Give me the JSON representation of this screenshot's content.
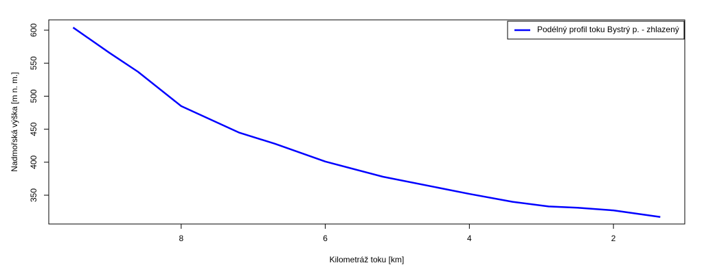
{
  "chart_data": {
    "type": "line",
    "x_label": "Kilometráž toku [km]",
    "y_label": "Nadmořská výška [m n. m.]",
    "x": [
      9.5,
      9.0,
      8.6,
      8.0,
      7.2,
      6.7,
      6.0,
      5.2,
      4.0,
      3.4,
      2.9,
      2.5,
      2.0,
      1.35
    ],
    "series": [
      {
        "name": "Podélný profil toku Bystrý p. - zhlazený",
        "color": "#0000ff",
        "values": [
          604,
          566,
          537,
          485,
          445,
          428,
          401,
          378,
          352,
          340,
          333,
          331,
          327,
          317
        ]
      }
    ],
    "xlim": [
      9.838,
      1.01
    ],
    "xticks": [
      8,
      6,
      4,
      2
    ],
    "ylim": [
      306.4,
      615.6
    ],
    "yticks": [
      350,
      400,
      450,
      500,
      550,
      600
    ],
    "grid": false,
    "legend": "top-right"
  }
}
